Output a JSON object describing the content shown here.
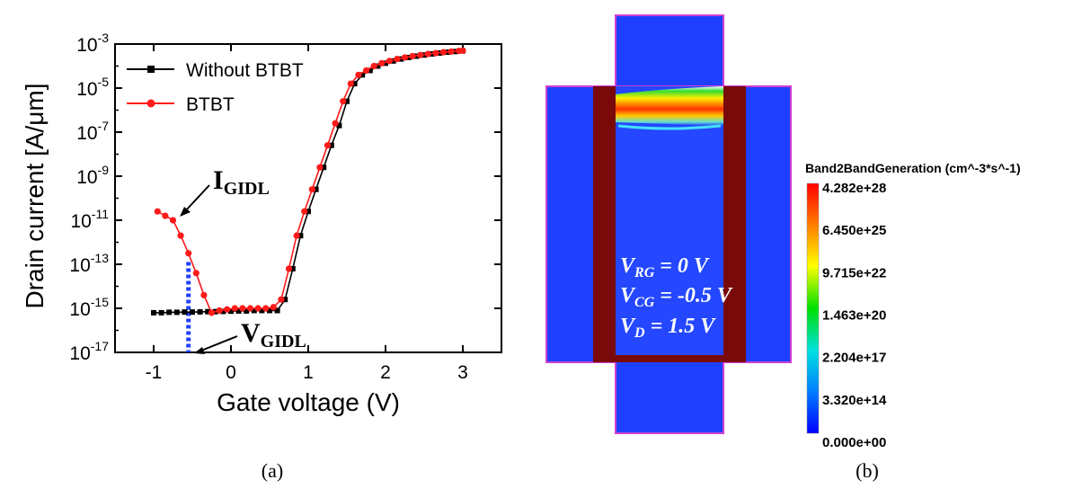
{
  "panel_a": {
    "caption": "(a)",
    "legend": [
      "Without BTBT",
      "BTBT"
    ],
    "annotations": {
      "igidl_main": "I",
      "igidl_sub": "GIDL",
      "vgidl_main": "V",
      "vgidl_sub": "GIDL"
    }
  },
  "panel_b": {
    "caption": "(b)",
    "colorbar_title": "Band2BandGeneration (cm^-3*s^-1)",
    "colorbar_labels": [
      "4.282e+28",
      "6.450e+25",
      "9.715e+22",
      "1.463e+20",
      "2.204e+17",
      "3.320e+14",
      "0.000e+00"
    ],
    "bias_labels": [
      {
        "main": "V",
        "sub": "RG",
        "value": " = 0 V"
      },
      {
        "main": "V",
        "sub": "CG",
        "value": " = -0.5 V"
      },
      {
        "main": "V",
        "sub": "D",
        "value": " = 1.5 V"
      }
    ],
    "colors": {
      "background": "#1f3fff",
      "gate": "#7a0a0a",
      "outline": "#d040d0"
    }
  },
  "chart_data": {
    "type": "line",
    "xlabel": "Gate voltage (V)",
    "ylabel": "Drain current [A/μm]",
    "xlim": [
      -1.5,
      3.5
    ],
    "ylim_exp": [
      -17,
      -3
    ],
    "y_log": true,
    "x_ticks": [
      "-1",
      "0",
      "1",
      "2",
      "3"
    ],
    "y_ticks": [
      {
        "base": "10",
        "exp": "-3",
        "value_exp": -3
      },
      {
        "base": "10",
        "exp": "-5",
        "value_exp": -5
      },
      {
        "base": "10",
        "exp": "-7",
        "value_exp": -7
      },
      {
        "base": "10",
        "exp": "-9",
        "value_exp": -9
      },
      {
        "base": "10",
        "exp": "-11",
        "value_exp": -11
      },
      {
        "base": "10",
        "exp": "-13",
        "value_exp": -13
      },
      {
        "base": "10",
        "exp": "-15",
        "value_exp": -15
      },
      {
        "base": "10",
        "exp": "-17",
        "value_exp": -17
      }
    ],
    "legend_position": "top-left",
    "series": [
      {
        "name": "Without BTBT",
        "color": "#000000",
        "marker": "square",
        "points": [
          [
            -1.0,
            -15.2
          ],
          [
            -0.9,
            -15.2
          ],
          [
            -0.8,
            -15.18
          ],
          [
            -0.7,
            -15.18
          ],
          [
            -0.6,
            -15.17
          ],
          [
            -0.5,
            -15.17
          ],
          [
            -0.4,
            -15.16
          ],
          [
            -0.3,
            -15.15
          ],
          [
            -0.2,
            -15.15
          ],
          [
            -0.1,
            -15.14
          ],
          [
            0.0,
            -15.13
          ],
          [
            0.1,
            -15.12
          ],
          [
            0.2,
            -15.12
          ],
          [
            0.3,
            -15.1
          ],
          [
            0.4,
            -15.1
          ],
          [
            0.5,
            -15.1
          ],
          [
            0.6,
            -15.1
          ],
          [
            0.7,
            -14.6
          ],
          [
            0.8,
            -13.2
          ],
          [
            0.9,
            -11.7
          ],
          [
            1.0,
            -10.6
          ],
          [
            1.1,
            -9.6
          ],
          [
            1.2,
            -8.6
          ],
          [
            1.3,
            -7.6
          ],
          [
            1.4,
            -6.7
          ],
          [
            1.5,
            -5.6
          ],
          [
            1.6,
            -4.8
          ],
          [
            1.7,
            -4.4
          ],
          [
            1.8,
            -4.2
          ],
          [
            1.9,
            -4.0
          ],
          [
            2.0,
            -3.87
          ],
          [
            2.1,
            -3.77
          ],
          [
            2.2,
            -3.68
          ],
          [
            2.3,
            -3.61
          ],
          [
            2.4,
            -3.55
          ],
          [
            2.5,
            -3.5
          ],
          [
            2.6,
            -3.45
          ],
          [
            2.7,
            -3.41
          ],
          [
            2.8,
            -3.37
          ],
          [
            2.9,
            -3.34
          ],
          [
            3.0,
            -3.31
          ]
        ]
      },
      {
        "name": "BTBT",
        "color": "#ff1a1a",
        "marker": "circle",
        "points": [
          [
            -0.95,
            -10.6
          ],
          [
            -0.85,
            -10.8
          ],
          [
            -0.75,
            -11.0
          ],
          [
            -0.65,
            -11.7
          ],
          [
            -0.55,
            -12.5
          ],
          [
            -0.45,
            -13.4
          ],
          [
            -0.35,
            -14.4
          ],
          [
            -0.25,
            -15.2
          ],
          [
            -0.15,
            -15.1
          ],
          [
            -0.05,
            -15.05
          ],
          [
            0.05,
            -15.0
          ],
          [
            0.15,
            -15.0
          ],
          [
            0.25,
            -15.0
          ],
          [
            0.35,
            -15.0
          ],
          [
            0.45,
            -15.0
          ],
          [
            0.55,
            -14.95
          ],
          [
            0.65,
            -14.6
          ],
          [
            0.75,
            -13.2
          ],
          [
            0.85,
            -11.7
          ],
          [
            0.95,
            -10.6
          ],
          [
            1.05,
            -9.6
          ],
          [
            1.15,
            -8.6
          ],
          [
            1.25,
            -7.6
          ],
          [
            1.35,
            -6.6
          ],
          [
            1.45,
            -5.6
          ],
          [
            1.55,
            -4.8
          ],
          [
            1.65,
            -4.4
          ],
          [
            1.75,
            -4.2
          ],
          [
            1.85,
            -4.0
          ],
          [
            1.95,
            -3.87
          ],
          [
            2.05,
            -3.77
          ],
          [
            2.15,
            -3.68
          ],
          [
            2.25,
            -3.61
          ],
          [
            2.35,
            -3.55
          ],
          [
            2.45,
            -3.5
          ],
          [
            2.55,
            -3.45
          ],
          [
            2.65,
            -3.41
          ],
          [
            2.75,
            -3.37
          ],
          [
            2.85,
            -3.34
          ],
          [
            2.95,
            -3.31
          ],
          [
            3.0,
            -3.3
          ]
        ]
      }
    ],
    "guide_line": {
      "x": -0.55,
      "y_exp_top": -12.9,
      "y_exp_bottom": -17,
      "color": "#1f3fff"
    }
  }
}
